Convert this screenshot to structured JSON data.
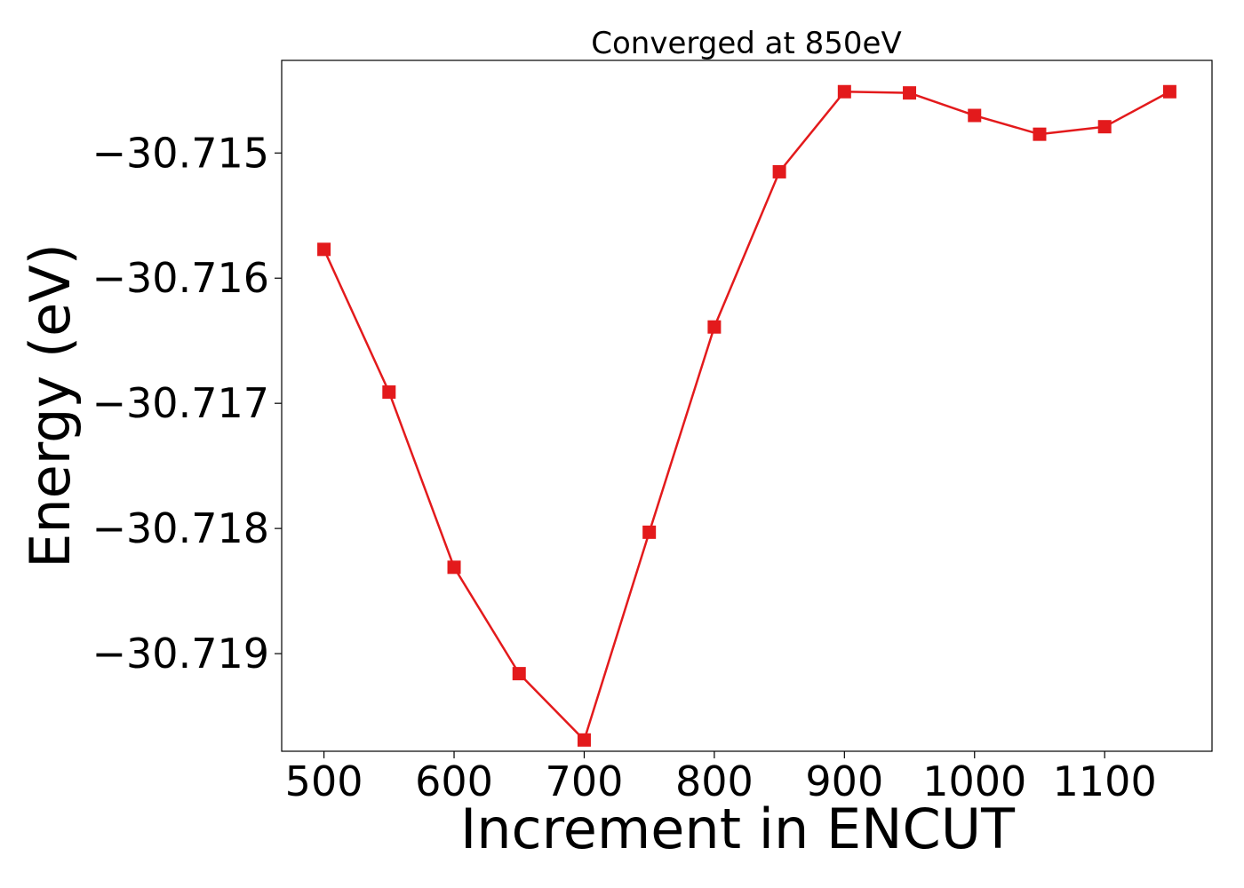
{
  "chart_data": {
    "type": "line",
    "title": "Converged at 850eV",
    "xlabel": "Increment in ENCUT",
    "ylabel": "Energy (eV)",
    "x": [
      500,
      550,
      600,
      650,
      700,
      750,
      800,
      850,
      900,
      950,
      1000,
      1050,
      1100,
      1150
    ],
    "series": [
      {
        "values": [
          -30.71577,
          -30.71691,
          -30.71831,
          -30.71916,
          -30.71969,
          -30.71803,
          -30.71639,
          -30.71515,
          -30.71451,
          -30.71452,
          -30.7147,
          -30.71485,
          -30.71479,
          -30.71451
        ],
        "color": "#e31a1c",
        "marker": "square"
      }
    ],
    "xticks": [
      500,
      600,
      700,
      800,
      900,
      1000,
      1100
    ],
    "xtick_labels": [
      "500",
      "600",
      "700",
      "800",
      "900",
      "1000",
      "1100"
    ],
    "yticks": [
      -30.719,
      -30.718,
      -30.717,
      -30.716,
      -30.715
    ],
    "ytick_labels": [
      "−30.719",
      "−30.718",
      "−30.717",
      "−30.716",
      "−30.715"
    ],
    "xlim": [
      467.5,
      1182.5
    ],
    "ylim": [
      -30.71978,
      -30.71426
    ],
    "grid": false,
    "legend": "none"
  }
}
